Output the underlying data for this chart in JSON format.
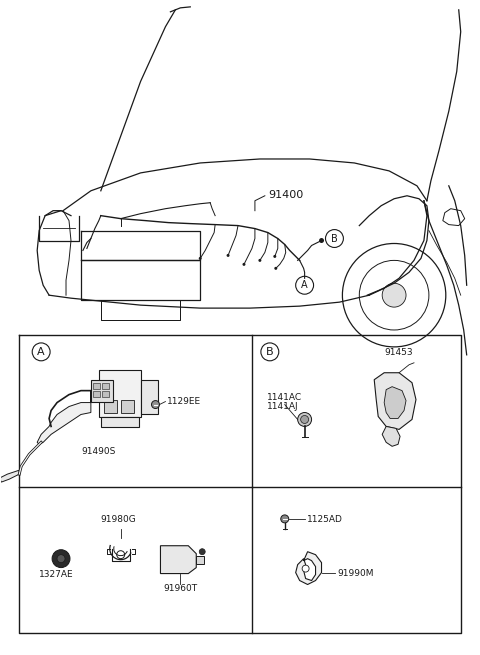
{
  "bg_color": "#ffffff",
  "line_color": "#1a1a1a",
  "fig_width": 4.8,
  "fig_height": 6.55,
  "dpi": 100,
  "labels": {
    "main_part": "91400",
    "part_1129EE": "1129EE",
    "part_91490S": "91490S",
    "part_1141AC": "1141AC",
    "part_1141AJ": "1141AJ",
    "part_91453": "91453",
    "part_1125AD": "1125AD",
    "part_91990M": "91990M",
    "part_91980G": "91980G",
    "part_1327AE": "1327AE",
    "part_91960T": "91960T",
    "box_a": "A",
    "box_b": "B"
  }
}
